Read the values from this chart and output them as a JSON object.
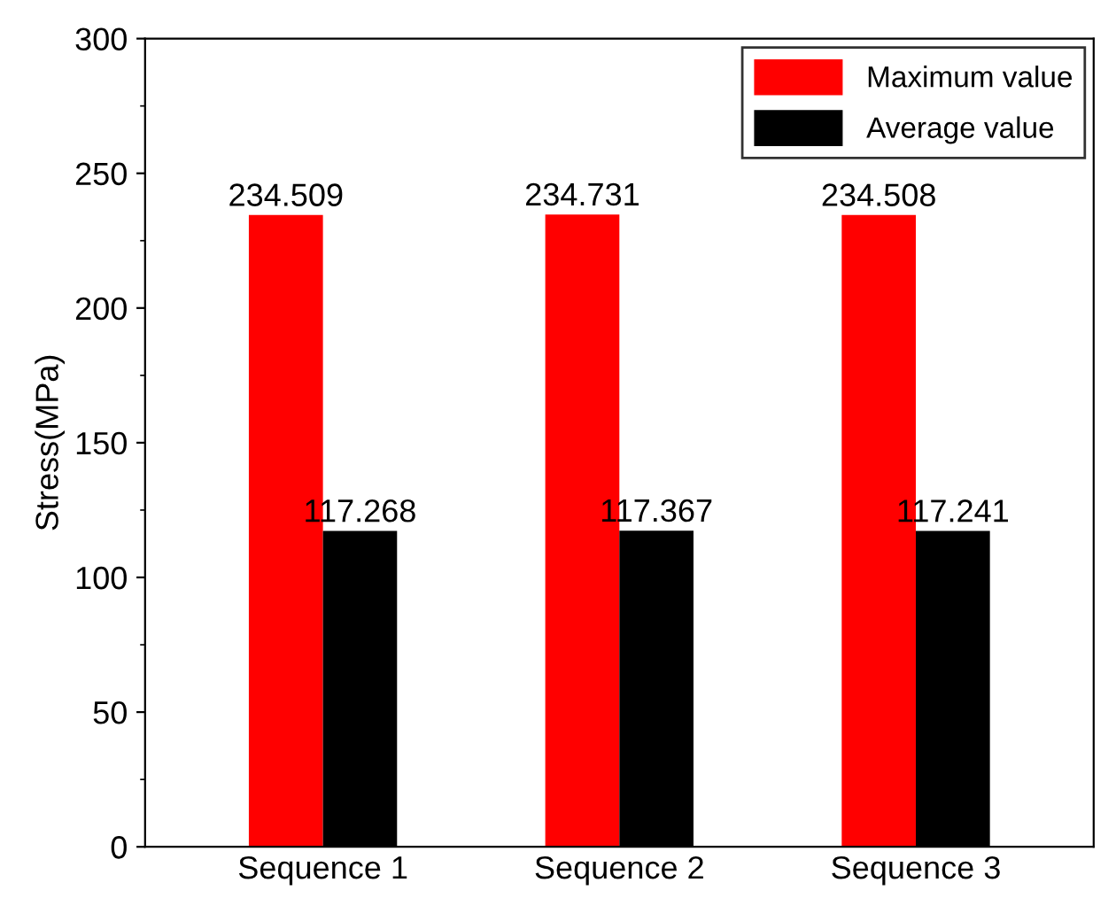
{
  "chart_data": {
    "type": "bar",
    "ylabel": "Stress(MPa)",
    "categories": [
      "Sequence 1",
      "Sequence 2",
      "Sequence 3"
    ],
    "series": [
      {
        "name": "Maximum value",
        "color": "#ff0000",
        "values": [
          234.509,
          234.731,
          234.508
        ]
      },
      {
        "name": "Average value",
        "color": "#000000",
        "values": [
          117.268,
          117.367,
          117.241
        ]
      }
    ],
    "ylim": [
      0,
      300
    ],
    "yticks": [
      0,
      50,
      100,
      150,
      200,
      250,
      300
    ],
    "data_labels": true,
    "legend": "top right",
    "grid": false
  }
}
